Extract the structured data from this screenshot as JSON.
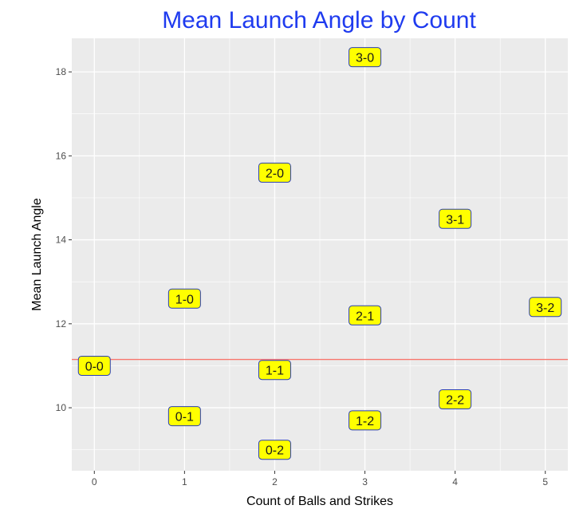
{
  "chart_data": {
    "type": "scatter",
    "title": "Mean Launch Angle by Count",
    "xlabel": "Count of Balls and Strikes",
    "ylabel": "Mean Launch Angle",
    "xlim": [
      -0.25,
      5.25
    ],
    "ylim": [
      8.5,
      18.8
    ],
    "x_ticks": [
      0,
      1,
      2,
      3,
      4,
      5
    ],
    "y_ticks": [
      10,
      12,
      14,
      16,
      18
    ],
    "grid": true,
    "reference_line": {
      "type": "horizontal",
      "y": 11.15,
      "color": "#f8766d"
    },
    "points": [
      {
        "label": "0-0",
        "x": 0,
        "y": 11.0
      },
      {
        "label": "1-0",
        "x": 1,
        "y": 12.6
      },
      {
        "label": "0-1",
        "x": 1,
        "y": 9.8
      },
      {
        "label": "2-0",
        "x": 2,
        "y": 15.6
      },
      {
        "label": "1-1",
        "x": 2,
        "y": 10.9
      },
      {
        "label": "0-2",
        "x": 2,
        "y": 9.0
      },
      {
        "label": "3-0",
        "x": 3,
        "y": 18.35
      },
      {
        "label": "2-1",
        "x": 3,
        "y": 12.2
      },
      {
        "label": "1-2",
        "x": 3,
        "y": 9.7
      },
      {
        "label": "3-1",
        "x": 4,
        "y": 14.5
      },
      {
        "label": "2-2",
        "x": 4,
        "y": 10.2
      },
      {
        "label": "3-2",
        "x": 5,
        "y": 12.4
      }
    ],
    "colors": {
      "title": "#1f3bef",
      "panel_background": "#ebebeb",
      "grid_line": "#ffffff",
      "label_fill": "#ffff00",
      "label_border": "#2b3fb0",
      "axis_tick": "#333333"
    }
  }
}
